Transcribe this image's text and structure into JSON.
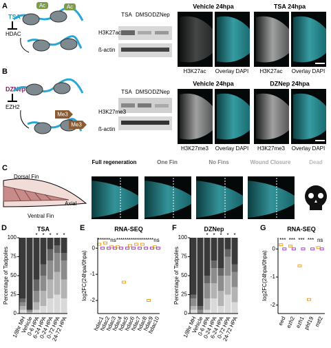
{
  "panels": {
    "A": {
      "label": "A",
      "drug": "TSA",
      "enzyme": "HDAC",
      "mark": "Ac",
      "blot": {
        "lanes": [
          "TSA",
          "DMSO",
          "DZNep"
        ],
        "rows": [
          "H3K27ac",
          "ß-actin"
        ]
      },
      "images": {
        "titles": [
          "Vehicle 24hpa",
          "TSA 24hpa"
        ],
        "captions": [
          "H3K27ac",
          "Overlay DAPI",
          "H3K27ac",
          "Overlay DAPI"
        ]
      }
    },
    "B": {
      "label": "B",
      "drug": "DZNep",
      "enzyme": "EZH2",
      "mark": "Me3",
      "blot": {
        "lanes": [
          "TSA",
          "DMSO",
          "DZNep"
        ],
        "rows": [
          "H3K27me3",
          "ß-actin"
        ]
      },
      "images": {
        "titles": [
          "Vehicle 24hpa",
          "DZNep 24hpa"
        ],
        "captions": [
          "H3K27me3",
          "Overlay DAPI",
          "H3K27me3",
          "Overlay DAPI"
        ]
      }
    },
    "C": {
      "label": "C",
      "fin_labels": [
        "Dorsal Fin",
        "Axial",
        "Ventral Fin"
      ]
    }
  },
  "chart_data": [
    {
      "type": "stacked_bar",
      "label": "D",
      "title": "TSA",
      "ylabel": "Percentage of Tadpoles",
      "categories": [
        "1/8hr MH",
        "Vehicle",
        "0-6 HPA",
        "6-24 HPA",
        "0-24 HPA",
        "0-72 HPA",
        "24-72 HPA"
      ],
      "annotations": [
        null,
        null,
        "*",
        "*",
        "*",
        "*",
        "*"
      ],
      "series": [
        {
          "name": "Full regeneration",
          "color": "#3a3a3a",
          "values": [
            80,
            95,
            55,
            35,
            15,
            10,
            20
          ]
        },
        {
          "name": "One Fin",
          "color": "#666666",
          "values": [
            5,
            0,
            15,
            15,
            15,
            10,
            10
          ]
        },
        {
          "name": "No Fins",
          "color": "#8c8c8c",
          "values": [
            5,
            3,
            15,
            20,
            25,
            25,
            25
          ]
        },
        {
          "name": "Wound Closure",
          "color": "#b3b3b3",
          "values": [
            5,
            2,
            10,
            20,
            25,
            30,
            25
          ]
        },
        {
          "name": "Dead",
          "color": "#d9d9d9",
          "values": [
            5,
            0,
            5,
            10,
            20,
            25,
            20
          ]
        }
      ],
      "ylim": [
        0,
        100
      ],
      "yticks": [
        0,
        25,
        50,
        75,
        100
      ]
    },
    {
      "type": "box",
      "label": "E",
      "title": "RNA-SEQ",
      "ylabel": "log2FC(24hpa/0hpa)",
      "categories": [
        "hdac1",
        "hdac2",
        "hdac3",
        "hdac4",
        "hdac5",
        "hdac6",
        "hdac7",
        "hdac8",
        "hdac9",
        "hdac10"
      ],
      "annotations": [
        "***",
        "***",
        "ns",
        "***",
        "***",
        "***",
        "***",
        "***",
        "***",
        "ns"
      ],
      "series": [
        {
          "color": "#f0a020",
          "values": [
            0.15,
            0.2,
            0.05,
            0.05,
            -1.3,
            0.1,
            0.15,
            0.15,
            -2.0,
            0.05
          ]
        },
        {
          "color": "#a040c0",
          "values": [
            0,
            0,
            0,
            0,
            0,
            0,
            0,
            0,
            0,
            0
          ]
        }
      ],
      "ylim": [
        -2.5,
        0.4
      ],
      "yticks": [
        0,
        -1,
        -2
      ]
    },
    {
      "type": "stacked_bar",
      "label": "F",
      "title": "DZNep",
      "ylabel": "Percentage of Tadpoles",
      "categories": [
        "1/8hr MH",
        "Vehicle",
        "0-6 HPA",
        "0-24 HPA",
        "6-24 HPA",
        "0-72 HPA",
        "24-72 HPA"
      ],
      "annotations": [
        null,
        null,
        "*",
        "*",
        "*",
        "*",
        "*"
      ],
      "series": [
        {
          "color": "#3a3a3a",
          "values": [
            75,
            90,
            50,
            30,
            40,
            15,
            35
          ]
        },
        {
          "color": "#666666",
          "values": [
            5,
            5,
            10,
            10,
            10,
            10,
            10
          ]
        },
        {
          "color": "#8c8c8c",
          "values": [
            10,
            5,
            20,
            20,
            20,
            25,
            20
          ]
        },
        {
          "color": "#b3b3b3",
          "values": [
            5,
            0,
            15,
            20,
            20,
            25,
            20
          ]
        },
        {
          "color": "#d9d9d9",
          "values": [
            5,
            0,
            5,
            20,
            10,
            25,
            15
          ]
        }
      ],
      "ylim": [
        0,
        100
      ],
      "yticks": [
        0,
        25,
        50,
        75,
        100
      ]
    },
    {
      "type": "box",
      "label": "G",
      "title": "RNA-SEQ",
      "ylabel": "log2FC(24hpa/0hpa)",
      "categories": [
        "eed",
        "ezh2",
        "ezh1",
        "phf19",
        "mtf2"
      ],
      "annotations": [
        "***",
        "***",
        "***",
        "***",
        "ns"
      ],
      "series": [
        {
          "color": "#f0a020",
          "values": [
            0.15,
            0.1,
            -0.6,
            -1.8,
            0.05
          ]
        },
        {
          "color": "#a040c0",
          "values": [
            0,
            0,
            0,
            0,
            0
          ]
        }
      ],
      "ylim": [
        -2.3,
        0.4
      ],
      "yticks": [
        0,
        -1,
        -2
      ]
    }
  ]
}
